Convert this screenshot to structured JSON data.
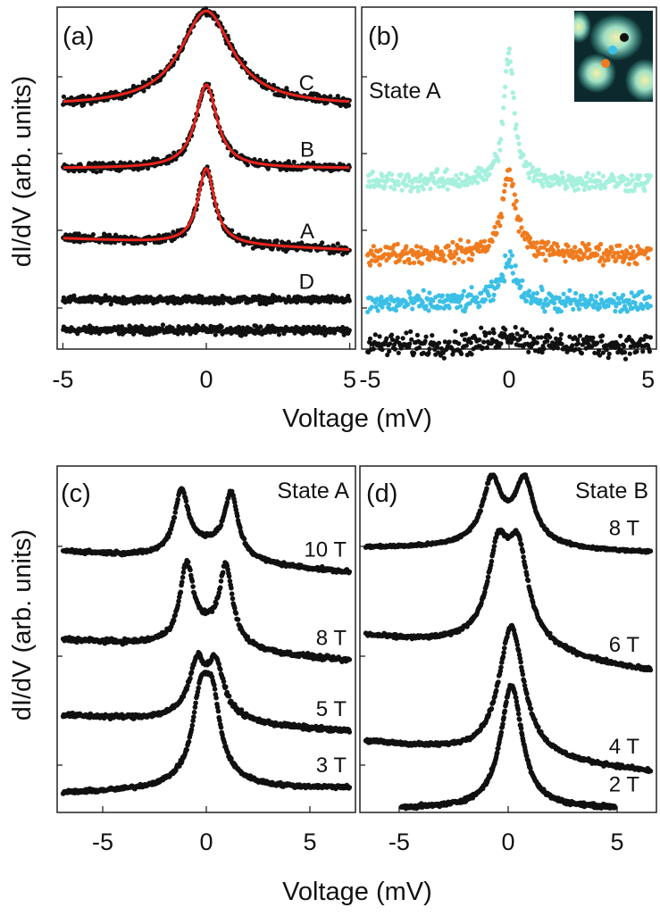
{
  "figure": {
    "ylabel": "dI/dV (arb. units)",
    "xlabel": "Voltage (mV)"
  },
  "chart_data": [
    {
      "id": "a",
      "type": "line",
      "panel_label": "(a)",
      "xlabel": "Voltage (mV)",
      "ylabel": "dI/dV (arb. units)",
      "xlim": [
        -5.2,
        5.2
      ],
      "ylim": [
        0,
        4.5
      ],
      "xticks": [
        "-5",
        "0",
        "5"
      ],
      "xtick_values": [
        -5,
        0,
        5
      ],
      "yticks": [
        1,
        2,
        3,
        4
      ],
      "series": [
        {
          "name": "lower trace",
          "label": "",
          "kind": "flat",
          "offset": 0.25,
          "amp": 0,
          "width": 0,
          "peak_x": 0,
          "split": 0,
          "slope": 0,
          "noise": 0.045,
          "marker_color": "#111111",
          "fit": false
        },
        {
          "name": "D",
          "label": "D",
          "kind": "flat",
          "offset": 0.65,
          "amp": 0,
          "width": 0,
          "peak_x": 0,
          "split": 0,
          "slope": 0,
          "noise": 0.04,
          "marker_color": "#111111",
          "fit": false
        },
        {
          "name": "A",
          "label": "A",
          "kind": "peak",
          "offset": 1.38,
          "amp": 1.0,
          "width": 0.35,
          "peak_x": 0,
          "split": 0,
          "slope": -0.015,
          "noise": 0.05,
          "marker_color": "#111111",
          "fit": true
        },
        {
          "name": "B",
          "label": "B",
          "kind": "peak",
          "offset": 2.38,
          "amp": 1.1,
          "width": 0.45,
          "peak_x": 0,
          "split": 0,
          "slope": 0,
          "noise": 0.045,
          "marker_color": "#111111",
          "fit": true
        },
        {
          "name": "C",
          "label": "C",
          "kind": "peak",
          "offset": 3.2,
          "amp": 1.25,
          "width": 1.1,
          "peak_x": 0,
          "split": 0,
          "slope": 0,
          "noise": 0.05,
          "marker_color": "#111111",
          "fit": true
        }
      ],
      "fit_color": "#e8231c"
    },
    {
      "id": "b",
      "type": "scatter",
      "panel_label": "(b)",
      "state_label": "State A",
      "xlim": [
        -5.3,
        5.3
      ],
      "ylim": [
        0,
        4.5
      ],
      "xticks": [
        "-5",
        "0",
        "5"
      ],
      "xtick_values": [
        -5,
        0,
        5
      ],
      "yticks": [
        1,
        2,
        3,
        4
      ],
      "series": [
        {
          "name": "black site",
          "label": "",
          "kind": "flat",
          "offset": 0.05,
          "amp": 0.15,
          "width": 0.6,
          "peak_x": 0,
          "split": 0,
          "slope": 0,
          "noise": 0.13,
          "marker_color": "#111111",
          "fit": false
        },
        {
          "name": "blue site",
          "label": "",
          "kind": "peak",
          "offset": 0.6,
          "amp": 0.55,
          "width": 0.35,
          "peak_x": 0,
          "split": 0,
          "slope": 0,
          "noise": 0.12,
          "marker_color": "#3bbfe6",
          "fit": false
        },
        {
          "name": "orange site",
          "label": "",
          "kind": "peak",
          "offset": 1.25,
          "amp": 1.05,
          "width": 0.3,
          "peak_x": 0,
          "split": 0,
          "slope": 0,
          "noise": 0.11,
          "marker_color": "#f07b1e",
          "fit": false
        },
        {
          "name": "light-cyan site",
          "label": "",
          "kind": "peak",
          "offset": 2.2,
          "amp": 1.7,
          "width": 0.22,
          "peak_x": 0,
          "split": 0,
          "slope": 0,
          "noise": 0.11,
          "marker_color": "#a6f0de",
          "fit": false
        }
      ],
      "inset": {
        "description": "topography inset with colored site markers",
        "markers": [
          {
            "color": "#111111"
          },
          {
            "color": "#3bbfe6"
          },
          {
            "color": "#f07b1e"
          }
        ]
      }
    },
    {
      "id": "c",
      "type": "line",
      "panel_label": "(c)",
      "state_label": "State A",
      "xlim": [
        -7.2,
        7.2
      ],
      "ylim": [
        0,
        4.5
      ],
      "xticks": [
        "-5",
        "0",
        "5"
      ],
      "xtick_values": [
        -5,
        0,
        5
      ],
      "yticks": [
        1,
        2,
        3
      ],
      "series": [
        {
          "name": "3 T",
          "label": "3 T",
          "kind": "split",
          "offset": 0.28,
          "amp": 0.9,
          "width": 0.45,
          "peak_x": 0,
          "split": 0.28,
          "slope": 0.005,
          "noise": 0.02,
          "marker_color": "#111111",
          "fit": false
        },
        {
          "name": "5 T",
          "label": "5 T",
          "kind": "split",
          "offset": 1.15,
          "amp": 0.62,
          "width": 0.45,
          "peak_x": 0,
          "split": 0.45,
          "slope": -0.015,
          "noise": 0.025,
          "marker_color": "#111111",
          "fit": false
        },
        {
          "name": "8 T",
          "label": "8 T",
          "kind": "split",
          "offset": 2.1,
          "amp": 0.95,
          "width": 0.38,
          "peak_x": 0,
          "split": 0.95,
          "slope": -0.02,
          "noise": 0.025,
          "marker_color": "#111111",
          "fit": false
        },
        {
          "name": "10 T",
          "label": "10 T",
          "kind": "split",
          "offset": 3.25,
          "amp": 0.8,
          "width": 0.4,
          "peak_x": 0,
          "split": 1.2,
          "slope": -0.02,
          "noise": 0.02,
          "marker_color": "#111111",
          "fit": false
        }
      ]
    },
    {
      "id": "d",
      "type": "line",
      "panel_label": "(d)",
      "state_label": "State B",
      "xlim": [
        -6.8,
        6.8
      ],
      "ylim": [
        0,
        4.5
      ],
      "xticks": [
        "-5",
        "0",
        "5"
      ],
      "xtick_values": [
        -5,
        0,
        5
      ],
      "yticks": [
        1,
        2,
        3
      ],
      "series": [
        {
          "name": "2 T",
          "label": "2 T",
          "kind": "peak",
          "offset": 0.05,
          "amp": 1.6,
          "width": 0.6,
          "peak_x": 0.15,
          "split": 0,
          "slope": 0,
          "noise": 0.02,
          "marker_color": "#111111",
          "fit": false,
          "x_range": [
            -4.9,
            4.9
          ]
        },
        {
          "name": "4 T",
          "label": "4 T",
          "kind": "peak",
          "offset": 0.72,
          "amp": 1.7,
          "width": 0.7,
          "peak_x": 0.15,
          "split": 0,
          "slope": -0.03,
          "noise": 0.02,
          "marker_color": "#111111",
          "fit": false
        },
        {
          "name": "6 T",
          "label": "6 T",
          "kind": "split",
          "offset": 2.05,
          "amp": 1.05,
          "width": 0.55,
          "peak_x": 0,
          "split": 0.45,
          "slope": -0.035,
          "noise": 0.02,
          "marker_color": "#111111",
          "fit": false
        },
        {
          "name": "8 T",
          "label": "8 T",
          "kind": "split",
          "offset": 3.4,
          "amp": 0.75,
          "width": 0.5,
          "peak_x": 0,
          "split": 0.75,
          "slope": -0.005,
          "noise": 0.015,
          "marker_color": "#111111",
          "fit": false
        }
      ]
    }
  ]
}
